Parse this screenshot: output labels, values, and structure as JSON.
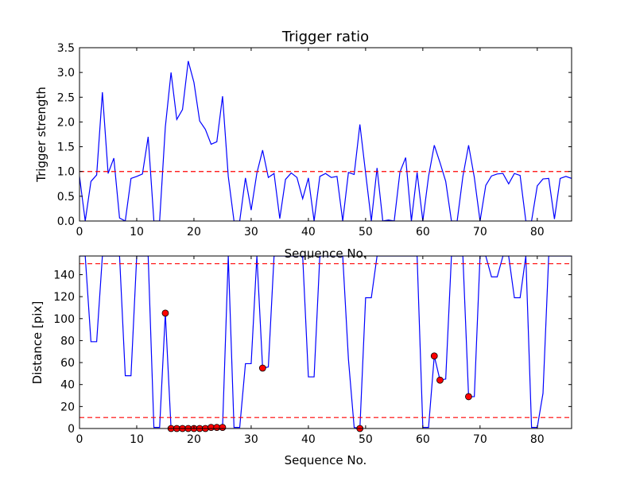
{
  "chart_data": [
    {
      "type": "line",
      "title": "Trigger ratio",
      "xlabel": "Sequence No.",
      "ylabel": "Trigger strength",
      "xlim": [
        0,
        86
      ],
      "ylim": [
        0,
        3.5
      ],
      "xticks": [
        0,
        10,
        20,
        30,
        40,
        50,
        60,
        70,
        80
      ],
      "xtick_labels": [
        "0",
        "10",
        "20",
        "30",
        "40",
        "50",
        "60",
        "70",
        "80"
      ],
      "yticks": [
        0,
        0.5,
        1,
        1.5,
        2,
        2.5,
        3,
        3.5
      ],
      "ytick_labels": [
        "0.0",
        "0.5",
        "1.0",
        "1.5",
        "2.0",
        "2.5",
        "3.0",
        "3.5"
      ],
      "series": [
        {
          "name": "Trigger strength",
          "color": "#0000ff",
          "x": [
            0,
            1,
            2,
            3,
            4,
            5,
            6,
            7,
            8,
            9,
            10,
            11,
            12,
            13,
            14,
            15,
            16,
            17,
            18,
            19,
            20,
            21,
            22,
            23,
            24,
            25,
            26,
            27,
            28,
            29,
            30,
            31,
            32,
            33,
            34,
            35,
            36,
            37,
            38,
            39,
            40,
            41,
            42,
            43,
            44,
            45,
            46,
            47,
            48,
            49,
            50,
            51,
            52,
            53,
            54,
            55,
            56,
            57,
            58,
            59,
            60,
            61,
            62,
            63,
            64,
            65,
            66,
            67,
            68,
            69,
            70,
            71,
            72,
            73,
            74,
            75,
            76,
            77,
            78,
            79,
            80,
            81,
            82,
            83,
            84,
            85,
            86
          ],
          "values": [
            0.9,
            0.0,
            0.8,
            0.93,
            2.6,
            0.96,
            1.27,
            0.06,
            0.0,
            0.86,
            0.9,
            0.95,
            1.7,
            0.0,
            0.0,
            1.9,
            3.0,
            2.05,
            2.25,
            3.23,
            2.8,
            2.02,
            1.85,
            1.55,
            1.6,
            2.52,
            0.9,
            0.0,
            0.0,
            0.87,
            0.22,
            0.97,
            1.43,
            0.88,
            0.96,
            0.05,
            0.84,
            0.97,
            0.88,
            0.45,
            0.87,
            0.0,
            0.9,
            0.96,
            0.88,
            0.9,
            0.0,
            0.98,
            0.94,
            1.95,
            0.97,
            0.0,
            1.07,
            0.0,
            0.02,
            0.0,
            0.99,
            1.28,
            0.0,
            0.98,
            0.0,
            0.9,
            1.53,
            1.18,
            0.8,
            0.0,
            0.0,
            0.9,
            1.53,
            0.88,
            0.0,
            0.72,
            0.91,
            0.95,
            0.96,
            0.75,
            0.96,
            0.92,
            0.0,
            0.0,
            0.71,
            0.85,
            0.86,
            0.04,
            0.86,
            0.9,
            0.86
          ]
        }
      ],
      "reference_lines": [
        {
          "y": 1.0,
          "color": "#ff0000",
          "style": "dashed"
        }
      ]
    },
    {
      "type": "line",
      "title": "",
      "xlabel": "Sequence No.",
      "ylabel": "Distance [pix]",
      "xlim": [
        0,
        86
      ],
      "ylim": [
        0,
        157
      ],
      "xticks": [
        0,
        10,
        20,
        30,
        40,
        50,
        60,
        70,
        80
      ],
      "xtick_labels": [
        "0",
        "10",
        "20",
        "30",
        "40",
        "50",
        "60",
        "70",
        "80"
      ],
      "yticks": [
        0,
        20,
        40,
        60,
        80,
        100,
        120,
        140
      ],
      "ytick_labels": [
        "0",
        "20",
        "40",
        "60",
        "80",
        "100",
        "120",
        "140"
      ],
      "series": [
        {
          "name": "Distance",
          "color": "#0000ff",
          "x": [
            0,
            1,
            2,
            3,
            4,
            5,
            6,
            7,
            8,
            9,
            10,
            11,
            12,
            13,
            14,
            15,
            16,
            17,
            18,
            19,
            20,
            21,
            22,
            23,
            24,
            25,
            26,
            27,
            28,
            29,
            30,
            31,
            32,
            33,
            34,
            35,
            36,
            37,
            38,
            39,
            40,
            41,
            42,
            43,
            44,
            45,
            46,
            47,
            48,
            49,
            50,
            51,
            52,
            53,
            54,
            55,
            56,
            57,
            58,
            59,
            60,
            61,
            62,
            63,
            64,
            65,
            66,
            67,
            68,
            69,
            70,
            71,
            72,
            73,
            74,
            75,
            76,
            77,
            78,
            79,
            80,
            81,
            82,
            83,
            84,
            85,
            86
          ],
          "values": [
            157,
            157,
            79,
            79,
            157,
            157,
            157,
            157,
            48,
            48,
            157,
            157,
            157,
            1,
            1,
            105,
            0,
            0,
            0,
            0,
            0,
            0,
            0,
            1,
            1,
            1,
            157,
            1,
            1,
            59,
            59,
            157,
            55,
            56,
            157,
            157,
            157,
            157,
            157,
            157,
            47,
            47,
            157,
            157,
            157,
            157,
            157,
            63,
            1,
            0,
            119,
            119,
            157,
            157,
            157,
            157,
            157,
            157,
            157,
            157,
            1,
            1,
            66,
            44,
            45,
            157,
            157,
            157,
            29,
            29,
            157,
            157,
            138,
            138,
            157,
            157,
            119,
            119,
            157,
            1,
            1,
            32,
            157,
            157,
            157,
            157,
            157
          ]
        }
      ],
      "markers": {
        "color": "#ff0000",
        "x": [
          15,
          16,
          17,
          18,
          19,
          20,
          21,
          22,
          23,
          24,
          25,
          32,
          49,
          62,
          63,
          68
        ],
        "values": [
          105,
          0,
          0,
          0,
          0,
          0,
          0,
          0,
          1,
          1,
          1,
          55,
          0,
          66,
          44,
          29
        ]
      },
      "reference_lines": [
        {
          "y": 150,
          "color": "#ff0000",
          "style": "dashed"
        },
        {
          "y": 10,
          "color": "#ff0000",
          "style": "dashed"
        }
      ]
    }
  ]
}
